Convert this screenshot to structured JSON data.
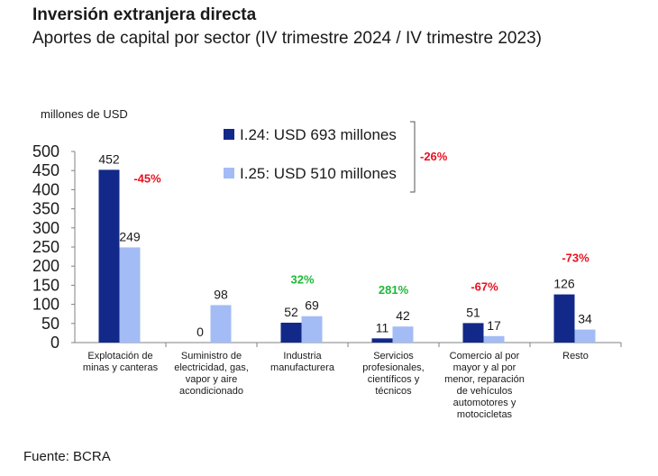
{
  "header": {
    "title": "Inversión extranjera directa",
    "subtitle": "Aportes de capital por sector (IV trimestre 2024 / IV trimestre 2023)"
  },
  "footer": {
    "source": "Fuente: BCRA"
  },
  "colors": {
    "series_2024": "#12298a",
    "series_2025": "#a3bcf5",
    "negative": "#e8101e",
    "positive": "#1fb83a"
  },
  "chart_data": {
    "type": "bar",
    "ylabel": "millones de USD",
    "ylim": [
      0,
      500
    ],
    "yticks": [
      0,
      50,
      100,
      150,
      200,
      250,
      300,
      350,
      400,
      450,
      500
    ],
    "grid": false,
    "legend_position": "top-center",
    "categories": [
      [
        "Explotación de",
        "minas y canteras"
      ],
      [
        "Suministro de",
        "electricidad, gas,",
        "vapor y aire",
        "acondicionado"
      ],
      [
        "Industria",
        "manufacturera"
      ],
      [
        "Servicios",
        "profesionales,",
        "científicos y",
        "técnicos"
      ],
      [
        "Comercio al por",
        "mayor y al por",
        "menor, reparación",
        "de vehículos",
        "automotores y",
        "motocicletas"
      ],
      [
        "Resto"
      ]
    ],
    "series": [
      {
        "name": "I.24: USD 693 millones",
        "values": [
          452,
          0,
          52,
          11,
          51,
          126
        ]
      },
      {
        "name": "I.25: USD 510 millones",
        "values": [
          249,
          98,
          69,
          42,
          17,
          34
        ]
      }
    ],
    "changes": [
      "-45%",
      "",
      "32%",
      "281%",
      "-67%",
      "-73%"
    ],
    "total_change": "-26%"
  }
}
